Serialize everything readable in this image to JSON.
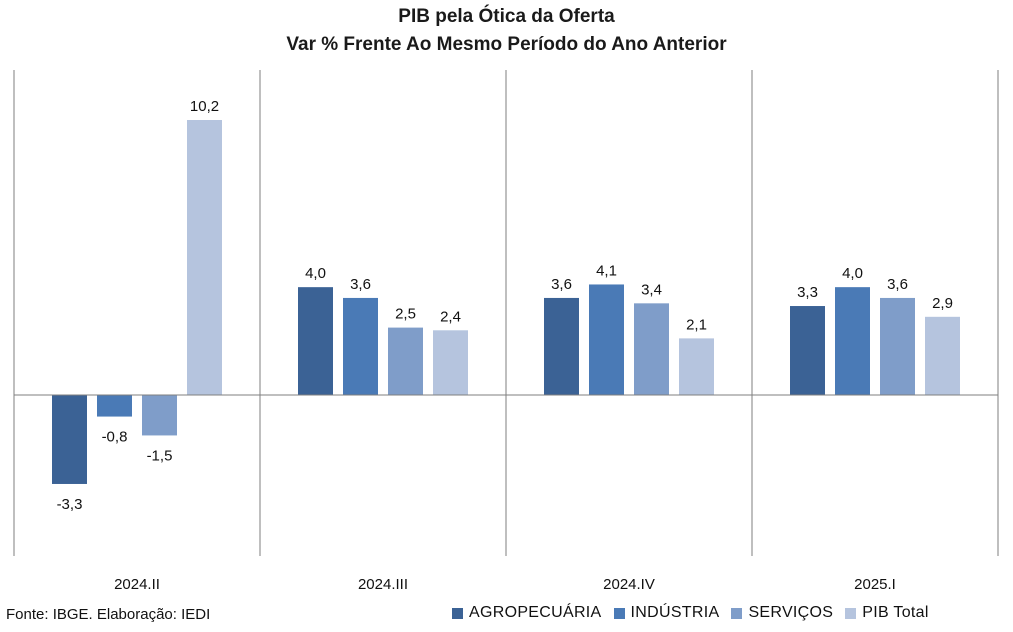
{
  "chart_data": {
    "type": "bar",
    "title": "PIB pela Ótica da Oferta",
    "subtitle": "Var % Frente Ao Mesmo Período do Ano Anterior",
    "categories": [
      "2024.II",
      "2024.III",
      "2024.IV",
      "2025.I"
    ],
    "series": [
      {
        "name": "AGROPECUÁRIA",
        "color": "#3b6295",
        "values": [
          -3.3,
          4.0,
          3.6,
          3.3
        ],
        "labels": [
          "-3,3",
          "4,0",
          "3,6",
          "3,3"
        ]
      },
      {
        "name": "INDÚSTRIA",
        "color": "#4a7ab6",
        "values": [
          -0.8,
          3.6,
          4.1,
          4.0
        ],
        "labels": [
          "-0,8",
          "3,6",
          "4,1",
          "4,0"
        ]
      },
      {
        "name": "SERVIÇOS",
        "color": "#7f9dc9",
        "values": [
          -1.5,
          2.5,
          3.4,
          3.6
        ],
        "labels": [
          "-1,5",
          "2,5",
          "3,4",
          "3,6"
        ]
      },
      {
        "name": "PIB Total",
        "color": "#b5c4de",
        "values": [
          10.2,
          2.4,
          2.1,
          2.9
        ],
        "labels": [
          "10,2",
          "2,4",
          "2,1",
          "2,9"
        ]
      }
    ],
    "grid": false,
    "legend": "bottom-right"
  },
  "source": "Fonte: IBGE. Elaboração: IEDI"
}
